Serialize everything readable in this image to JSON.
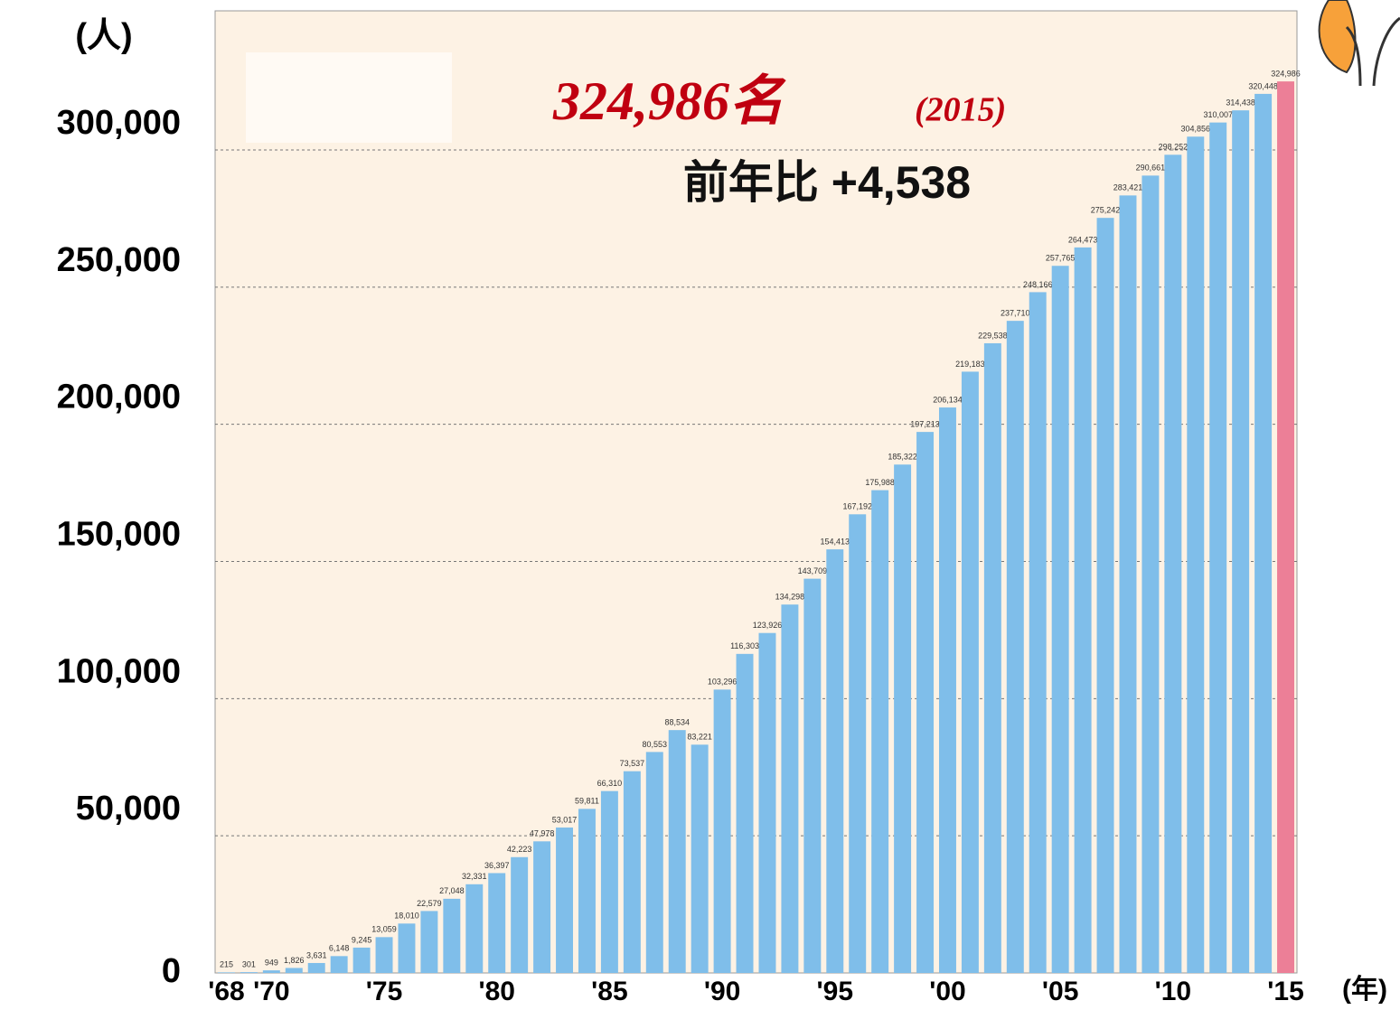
{
  "chart_data": {
    "type": "bar",
    "y_label": "(人)",
    "x_label": "(年)",
    "annotations": [
      "324,986名",
      "(2015)",
      "前年比 +4,538"
    ],
    "categories": [
      "'68",
      null,
      "'70",
      null,
      null,
      null,
      null,
      "'75",
      null,
      null,
      null,
      null,
      "'80",
      null,
      null,
      null,
      null,
      "'85",
      null,
      null,
      null,
      null,
      "'90",
      null,
      null,
      null,
      null,
      "'95",
      null,
      null,
      null,
      null,
      "'00",
      null,
      null,
      null,
      null,
      "'05",
      null,
      null,
      null,
      null,
      "'10",
      null,
      null,
      null,
      null,
      "'15"
    ],
    "values": [
      215,
      301,
      949,
      1826,
      3631,
      6148,
      9245,
      13059,
      18010,
      22579,
      27048,
      32331,
      36397,
      42223,
      47978,
      53017,
      59811,
      66310,
      73537,
      80553,
      88534,
      83221,
      103296,
      116303,
      123926,
      134298,
      143709,
      154413,
      167192,
      175988,
      185322,
      197213,
      206134,
      219183,
      229538,
      237710,
      248166,
      257765,
      264473,
      275242,
      283421,
      290661,
      298252,
      304856,
      310007,
      314438,
      320448,
      324986
    ],
    "value_labels": [
      "215",
      "301",
      "949",
      "1,826",
      "3,631",
      "6,148",
      "9,245",
      "13,059",
      "18,010",
      "22,579",
      "27,048",
      "32,331",
      "36,397",
      "42,223",
      "47,978",
      "53,017",
      "59,811",
      "66,310",
      "73,537",
      "80,553",
      "88,534",
      "83,221",
      "103,296",
      "116,303",
      "123,926",
      "134,298",
      "143,709",
      "154,413",
      "167,192",
      "175,988",
      "185,322",
      "197,213",
      "206,134",
      "219,183",
      "229,538",
      "237,710",
      "248,166",
      "257,765",
      "264,473",
      "275,242",
      "283,421",
      "290,661",
      "298,252",
      "304,856",
      "310,007",
      "314,438",
      "320,448",
      "324,986"
    ],
    "colors": [
      "#7fbeea",
      "#7fbeea",
      "#7fbeea",
      "#7fbeea",
      "#7fbeea",
      "#7fbeea",
      "#7fbeea",
      "#7fbeea",
      "#7fbeea",
      "#7fbeea",
      "#7fbeea",
      "#7fbeea",
      "#7fbeea",
      "#7fbeea",
      "#7fbeea",
      "#7fbeea",
      "#7fbeea",
      "#7fbeea",
      "#7fbeea",
      "#7fbeea",
      "#7fbeea",
      "#7fbeea",
      "#7fbeea",
      "#7fbeea",
      "#7fbeea",
      "#7fbeea",
      "#7fbeea",
      "#7fbeea",
      "#7fbeea",
      "#7fbeea",
      "#7fbeea",
      "#7fbeea",
      "#7fbeea",
      "#7fbeea",
      "#7fbeea",
      "#7fbeea",
      "#7fbeea",
      "#7fbeea",
      "#7fbeea",
      "#7fbeea",
      "#7fbeea",
      "#7fbeea",
      "#7fbeea",
      "#7fbeea",
      "#7fbeea",
      "#7fbeea",
      "#7fbeea",
      "#ec7f97"
    ],
    "ylim": [
      0,
      350000
    ],
    "yticks": [
      0,
      {
        "value": 50000,
        "label": "50,000"
      },
      {
        "value": 100000,
        "label": "100,000"
      },
      {
        "value": 150000,
        "label": "150,000"
      },
      {
        "value": 200000,
        "label": "200,000"
      },
      {
        "value": 250000,
        "label": "250,000"
      },
      {
        "value": 300000,
        "label": "300,000"
      }
    ],
    "grid": true
  }
}
